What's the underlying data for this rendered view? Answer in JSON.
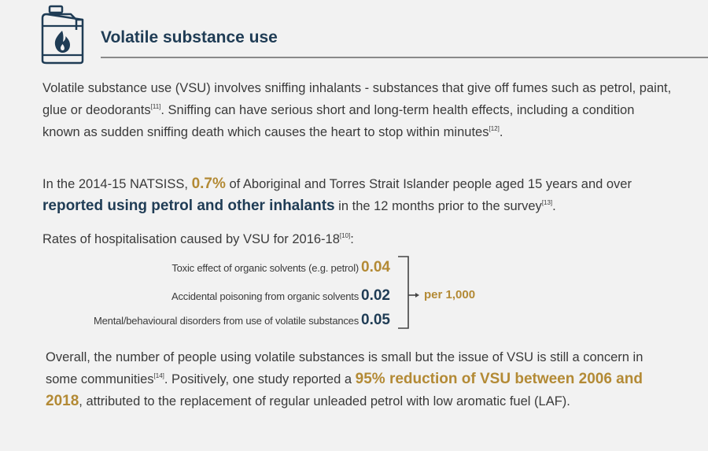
{
  "header": {
    "title": "Volatile substance use",
    "icon": "jerry-can-flame-icon"
  },
  "intro": {
    "text1": "Volatile substance use (VSU) involves sniffing inhalants - substances that give off fumes such as petrol, paint, glue or deodorants",
    "ref1": "[11]",
    "text2": ". Sniffing can have serious short and long-term health effects, including a condition known as sudden sniffing death which causes the heart to stop within minutes",
    "ref2": "[12]",
    "text3": "."
  },
  "survey": {
    "text1": "In the 2014-15 NATSISS, ",
    "percent": "0.7%",
    "text2": " of Aboriginal and Torres Strait Islander people aged 15 years and over ",
    "highlight": "reported using petrol and other inhalants",
    "text3": " in the 12 months prior to the survey",
    "ref": "[13]",
    "text4": "."
  },
  "rates": {
    "intro": "Rates of hospitalisation caused by VSU for 2016-18",
    "intro_ref": "[10]",
    "intro_end": ":",
    "items": [
      {
        "label": "Toxic effect of organic solvents (e.g. petrol)",
        "value": "0.04"
      },
      {
        "label": "Accidental poisoning from organic solvents",
        "value": "0.02"
      },
      {
        "label": "Mental/behavioural disorders from use of volatile substances",
        "value": "0.05"
      }
    ],
    "unit": "per 1,000"
  },
  "overall": {
    "text1": "Overall, the number of people using volatile substances is small but the issue of VSU is still a concern in some communities",
    "ref": "[14]",
    "text2": ". Positively, one study reported a ",
    "highlight": "95% reduction of VSU between 2006 and 2018",
    "text3": ", attributed to the replacement of regular unleaded petrol with low aromatic fuel (LAF)."
  },
  "colors": {
    "navy": "#1f3c55",
    "gold": "#b38a35",
    "text": "#3a3a3a",
    "background": "#f2f2f2"
  }
}
